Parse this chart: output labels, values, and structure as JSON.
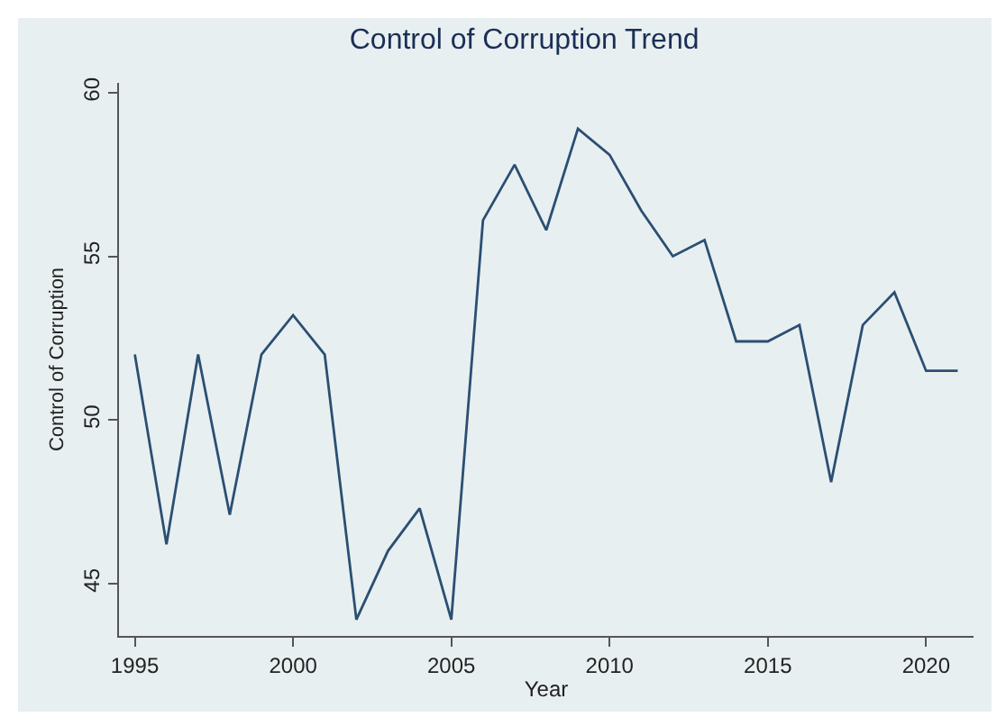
{
  "chart_data": {
    "type": "line",
    "title": "Control of Corruption Trend",
    "xlabel": "Year",
    "ylabel": "Control of Corruption",
    "x": [
      1995,
      1996,
      1997,
      1998,
      1999,
      2000,
      2001,
      2002,
      2003,
      2004,
      2005,
      2006,
      2007,
      2008,
      2009,
      2010,
      2011,
      2012,
      2013,
      2014,
      2015,
      2016,
      2017,
      2018,
      2019,
      2020,
      2021
    ],
    "series": [
      {
        "color": "#2b4f72",
        "values": [
          52,
          46.2,
          52,
          47.1,
          52,
          53.2,
          52,
          43.9,
          46,
          47.3,
          43.9,
          56.1,
          57.8,
          55.8,
          58.9,
          58.1,
          56.4,
          55,
          55.5,
          52.4,
          52.4,
          52.9,
          48.1,
          52.9,
          53.9,
          51.5,
          51.5
        ]
      }
    ],
    "xlim": [
      1994.5,
      2021.5
    ],
    "xticks": [
      1995,
      2000,
      2005,
      2010,
      2015,
      2020
    ],
    "ylim": [
      43.4,
      60.3
    ],
    "yticks": [
      45,
      50,
      55,
      60
    ],
    "grid": false,
    "legend": false,
    "marker": "none",
    "line_style": "solid"
  }
}
